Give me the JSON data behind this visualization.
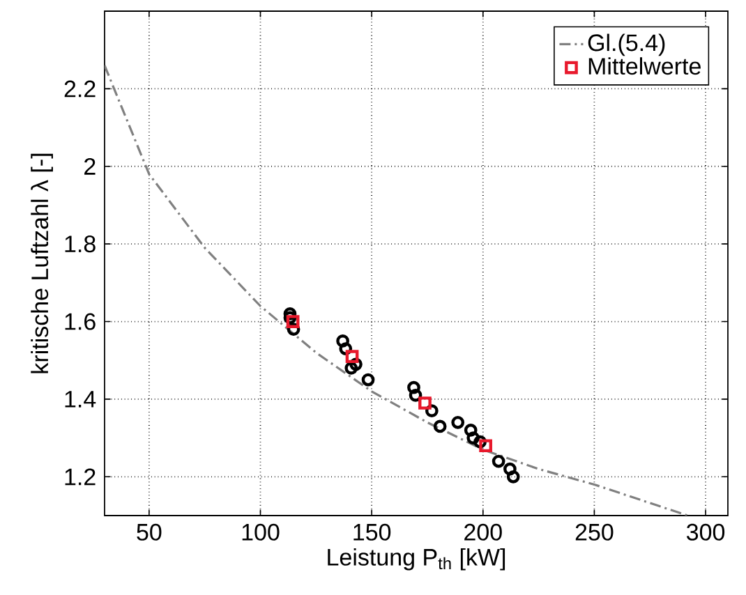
{
  "chart_data": {
    "type": "scatter",
    "xlabel": "Leistung P$_{th}$ [kW]",
    "ylabel": "kritische Luftzahl λ [-]",
    "xlim": [
      30,
      310
    ],
    "ylim": [
      1.1,
      2.4
    ],
    "xticks": [
      50,
      100,
      150,
      200,
      250,
      300
    ],
    "yticks": [
      1.2,
      1.4,
      1.6,
      1.8,
      2,
      2.2
    ],
    "grid": true,
    "legend": "top right",
    "series": [
      {
        "name": "Gl.(5.4)",
        "type": "line",
        "line_style": "dashdot",
        "marker": "none",
        "color": "#808080",
        "x": [
          30,
          50,
          75,
          100,
          125,
          150,
          175,
          200,
          225,
          250,
          292
        ],
        "values": [
          2.26,
          1.98,
          1.79,
          1.64,
          1.52,
          1.42,
          1.34,
          1.27,
          1.22,
          1.18,
          1.1
        ]
      },
      {
        "marker": "circle",
        "color": "#000000",
        "x": [
          113.3,
          113.3,
          114.9,
          137.0,
          138.3,
          139.7,
          140.8,
          142.9,
          148.4,
          168.9,
          169.7,
          173.9,
          177.0,
          180.7,
          188.7,
          194.5,
          195.6,
          198.7,
          207.0,
          212.1,
          213.6
        ],
        "values": [
          1.62,
          1.61,
          1.58,
          1.55,
          1.53,
          null,
          1.48,
          1.49,
          1.45,
          1.43,
          1.41,
          null,
          1.37,
          1.33,
          1.34,
          1.32,
          1.3,
          1.29,
          1.24,
          1.22,
          1.2
        ]
      },
      {
        "name": "Mittelwerte",
        "marker": "square",
        "color": "#e8192c",
        "x": [
          114.6,
          141.2,
          173.9,
          201.2
        ],
        "values": [
          1.6,
          1.51,
          1.39,
          1.28
        ]
      }
    ]
  }
}
